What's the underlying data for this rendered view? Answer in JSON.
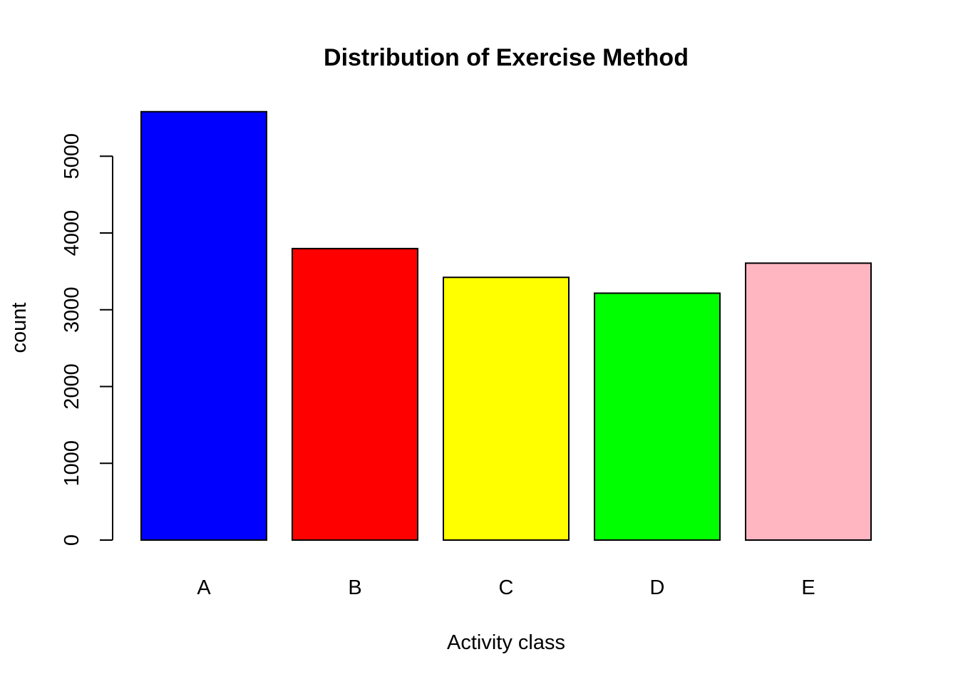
{
  "chart_data": {
    "type": "bar",
    "title": "Distribution of Exercise Method",
    "xlabel": "Activity class",
    "ylabel": "count",
    "categories": [
      "A",
      "B",
      "C",
      "D",
      "E"
    ],
    "values": [
      5580,
      3797,
      3422,
      3216,
      3607
    ],
    "colors": [
      "#0000ff",
      "#ff0000",
      "#ffff00",
      "#00ff00",
      "#ffb6c1"
    ],
    "ylim": [
      0,
      5580
    ],
    "yticks": [
      0,
      1000,
      2000,
      3000,
      4000,
      5000
    ],
    "ytick_labels": [
      "0",
      "1000",
      "2000",
      "3000",
      "4000",
      "5000"
    ],
    "grid": false,
    "legend": "none"
  }
}
